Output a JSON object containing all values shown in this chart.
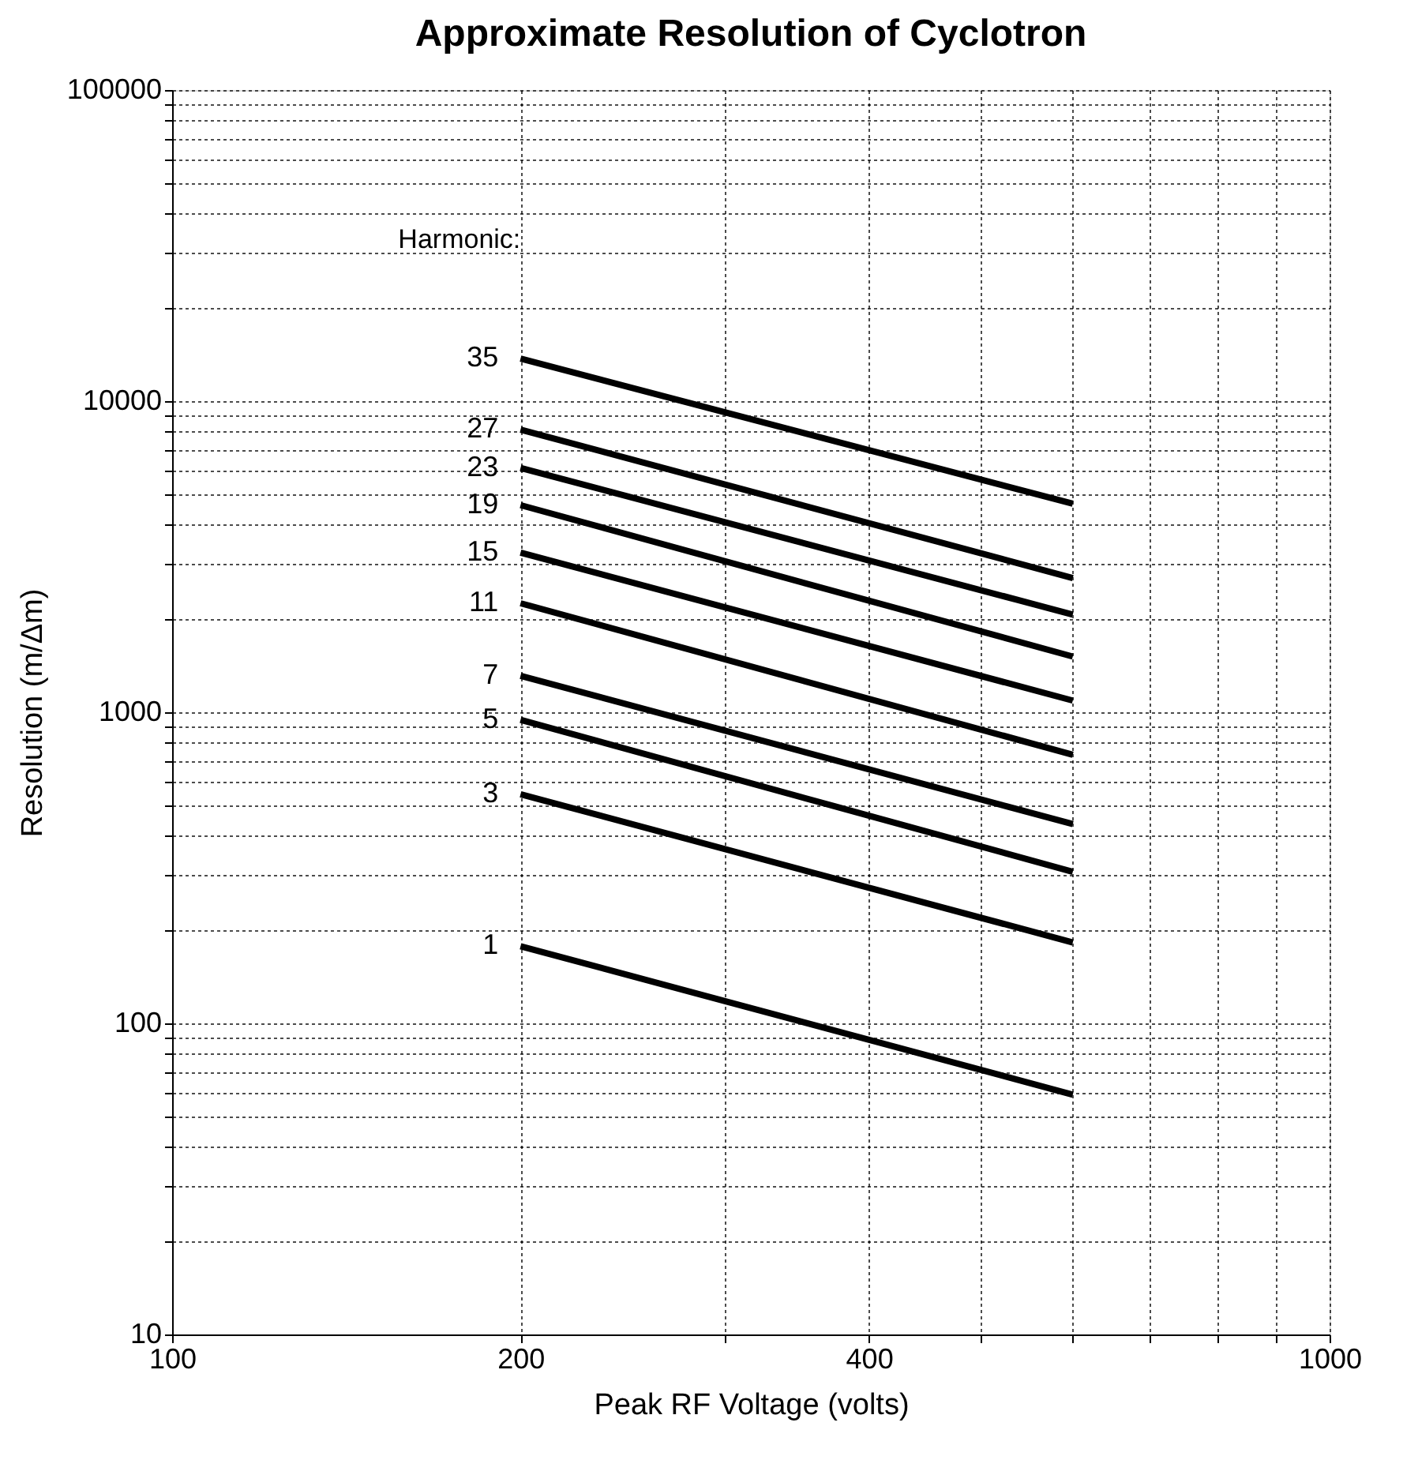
{
  "chart_data": {
    "type": "line",
    "title": "Approximate Resolution of Cyclotron",
    "xlabel": "Peak RF Voltage (volts)",
    "ylabel": "Resolution (m/Δm)",
    "legend_title": "Harmonic:",
    "log": "xy",
    "grid": true,
    "legend": false,
    "line_style": "solid",
    "marker": "none",
    "x": [
      200,
      600
    ],
    "series": [
      {
        "name": "35",
        "color": "#000000",
        "values": [
          13700,
          4680
        ]
      },
      {
        "name": "27",
        "color": "#000000",
        "values": [
          8100,
          2700
        ]
      },
      {
        "name": "23",
        "color": "#000000",
        "values": [
          6100,
          2060
        ]
      },
      {
        "name": "19",
        "color": "#000000",
        "values": [
          4630,
          1510
        ]
      },
      {
        "name": "15",
        "color": "#000000",
        "values": [
          3260,
          1090
        ]
      },
      {
        "name": "11",
        "color": "#000000",
        "values": [
          2240,
          730
        ]
      },
      {
        "name": "7",
        "color": "#000000",
        "values": [
          1310,
          437
        ]
      },
      {
        "name": "5",
        "color": "#000000",
        "values": [
          945,
          307
        ]
      },
      {
        "name": "3",
        "color": "#000000",
        "values": [
          545,
          182
        ]
      },
      {
        "name": "1",
        "color": "#000000",
        "values": [
          177,
          59
        ]
      }
    ],
    "xlim": [
      100,
      1000
    ],
    "xticks": [
      100,
      200,
      {
        "value": 300,
        "label": null
      },
      400,
      {
        "value": 500,
        "label": null
      },
      {
        "value": 600,
        "label": null
      },
      {
        "value": 700,
        "label": null
      },
      {
        "value": 800,
        "label": null
      },
      {
        "value": 900,
        "label": null
      },
      1000
    ],
    "ylim": [
      10,
      100000
    ],
    "yticks": [
      10,
      {
        "value": 20,
        "label": null
      },
      {
        "value": 30,
        "label": null
      },
      {
        "value": 40,
        "label": null
      },
      {
        "value": 50,
        "label": null
      },
      {
        "value": 60,
        "label": null
      },
      {
        "value": 70,
        "label": null
      },
      {
        "value": 80,
        "label": null
      },
      {
        "value": 90,
        "label": null
      },
      100,
      {
        "value": 200,
        "label": null
      },
      {
        "value": 300,
        "label": null
      },
      {
        "value": 400,
        "label": null
      },
      {
        "value": 500,
        "label": null
      },
      {
        "value": 600,
        "label": null
      },
      {
        "value": 700,
        "label": null
      },
      {
        "value": 800,
        "label": null
      },
      {
        "value": 900,
        "label": null
      },
      1000,
      {
        "value": 2000,
        "label": null
      },
      {
        "value": 3000,
        "label": null
      },
      {
        "value": 4000,
        "label": null
      },
      {
        "value": 5000,
        "label": null
      },
      {
        "value": 6000,
        "label": null
      },
      {
        "value": 7000,
        "label": null
      },
      {
        "value": 8000,
        "label": null
      },
      {
        "value": 9000,
        "label": null
      },
      10000,
      {
        "value": 20000,
        "label": null
      },
      {
        "value": 30000,
        "label": null
      },
      {
        "value": 40000,
        "label": null
      },
      {
        "value": 50000,
        "label": null
      },
      {
        "value": 60000,
        "label": null
      },
      {
        "value": 70000,
        "label": null
      },
      {
        "value": 80000,
        "label": null
      },
      {
        "value": 90000,
        "label": null
      },
      100000
    ]
  }
}
